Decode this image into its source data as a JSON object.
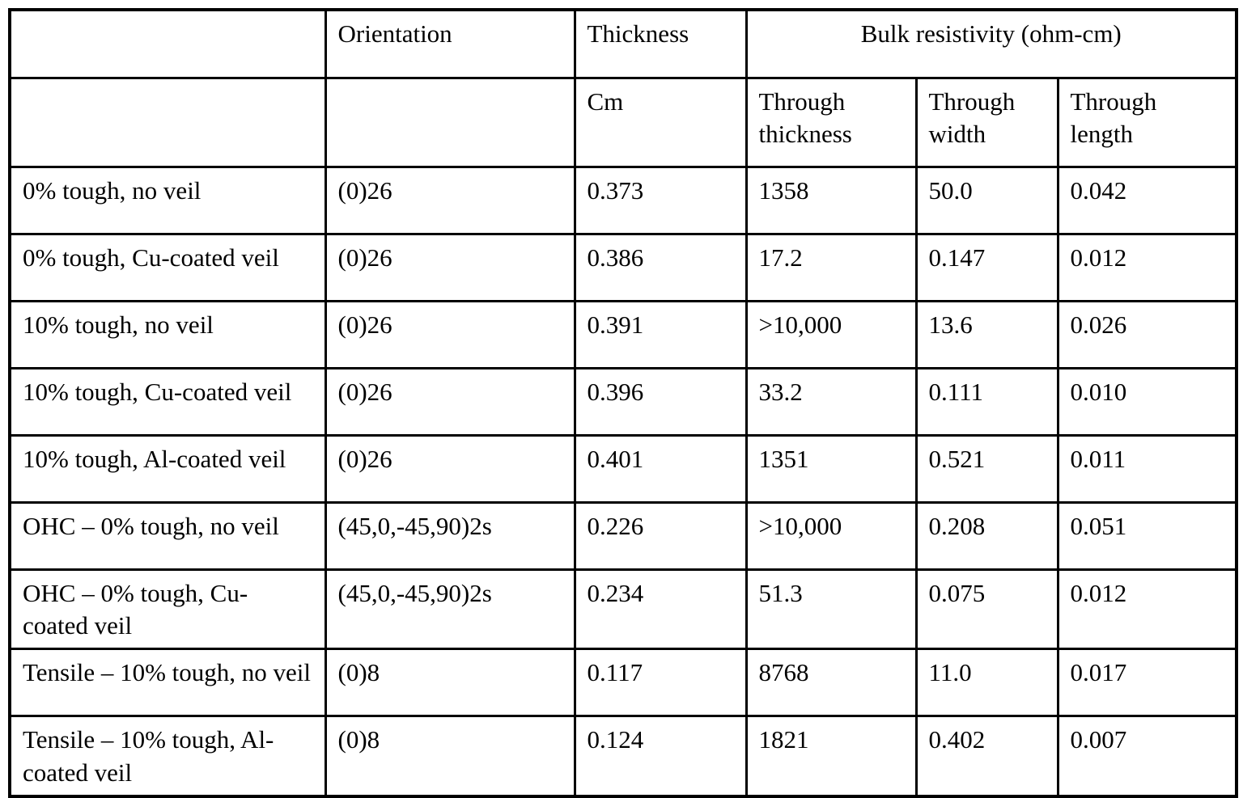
{
  "table": {
    "headers": {
      "corner": "",
      "orientation": "Orientation",
      "thickness": "Thickness",
      "bulk_resistivity": "Bulk resistivity (ohm-cm)"
    },
    "subheaders": {
      "corner": "",
      "orientation": "",
      "thickness_unit": "Cm",
      "through_thickness": "Through thickness",
      "through_width": "Through width",
      "through_length": "Through length"
    },
    "rows": [
      {
        "label": "0% tough, no veil",
        "orientation": "(0)26",
        "thickness": "0.373",
        "through_thickness": "1358",
        "through_width": "50.0",
        "through_length": "0.042"
      },
      {
        "label": "0% tough, Cu-coated veil",
        "orientation": "(0)26",
        "thickness": "0.386",
        "through_thickness": "17.2",
        "through_width": "0.147",
        "through_length": "0.012"
      },
      {
        "label": "10% tough, no veil",
        "orientation": "(0)26",
        "thickness": "0.391",
        "through_thickness": ">10,000",
        "through_width": "13.6",
        "through_length": "0.026"
      },
      {
        "label": "10% tough, Cu-coated veil",
        "orientation": "(0)26",
        "thickness": "0.396",
        "through_thickness": "33.2",
        "through_width": "0.111",
        "through_length": "0.010"
      },
      {
        "label": "10% tough, Al-coated veil",
        "orientation": "(0)26",
        "thickness": "0.401",
        "through_thickness": "1351",
        "through_width": "0.521",
        "through_length": "0.011"
      },
      {
        "label": "OHC – 0% tough, no veil",
        "orientation": "(45,0,-45,90)2s",
        "thickness": "0.226",
        "through_thickness": ">10,000",
        "through_width": "0.208",
        "through_length": "0.051"
      },
      {
        "label": "OHC – 0% tough, Cu-coated veil",
        "orientation": "(45,0,-45,90)2s",
        "thickness": "0.234",
        "through_thickness": "51.3",
        "through_width": "0.075",
        "through_length": "0.012"
      },
      {
        "label": "Tensile – 10% tough, no veil",
        "orientation": "(0)8",
        "thickness": "0.117",
        "through_thickness": "8768",
        "through_width": "11.0",
        "through_length": "0.017"
      },
      {
        "label": "Tensile – 10% tough, Al-coated veil",
        "orientation": "(0)8",
        "thickness": "0.124",
        "through_thickness": "1821",
        "through_width": "0.402",
        "through_length": "0.007"
      }
    ]
  }
}
